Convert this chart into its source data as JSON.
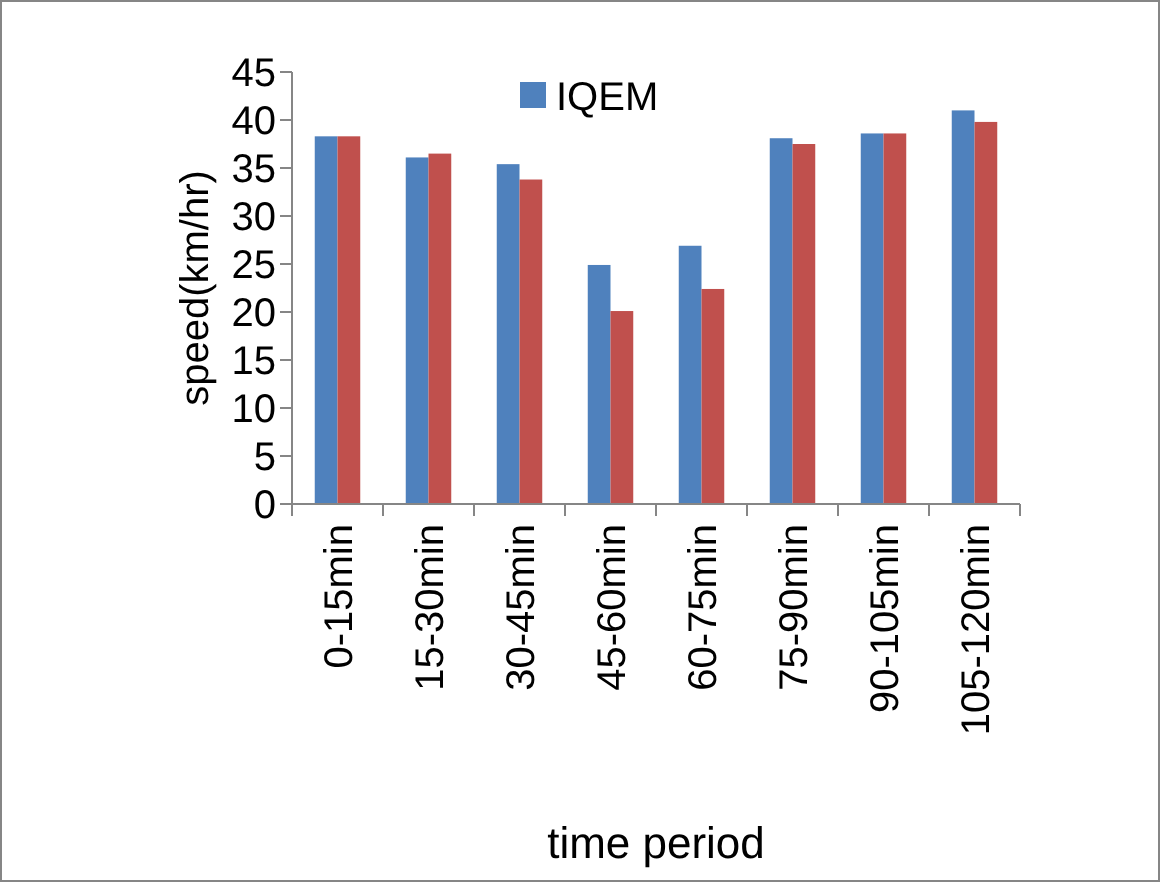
{
  "chart_data": {
    "type": "bar",
    "xlabel": "time period",
    "ylabel": "speed(km/hr)",
    "categories": [
      "0-15min",
      "15-30min",
      "30-45min",
      "45-60min",
      "60-75min",
      "75-90min",
      "90-105min",
      "105-120min"
    ],
    "series": [
      {
        "name": "IQEM",
        "color": "#4f81bd",
        "values": [
          38.3,
          36.1,
          35.4,
          24.9,
          26.9,
          38.1,
          38.6,
          41.0
        ]
      },
      {
        "color": "#c0504d",
        "values": [
          38.3,
          36.5,
          33.8,
          20.1,
          22.4,
          37.5,
          38.6,
          39.8
        ]
      }
    ],
    "ylim": [
      0,
      45
    ],
    "yticks": [
      0,
      5,
      10,
      15,
      20,
      25,
      30,
      35,
      40,
      45
    ],
    "grid": false,
    "legend": "top"
  }
}
